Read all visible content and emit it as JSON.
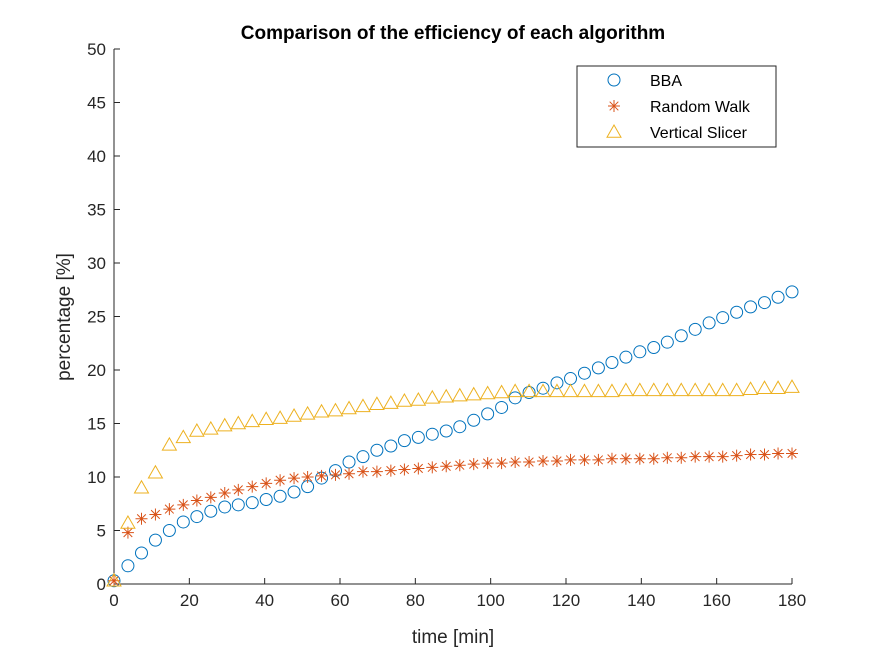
{
  "chart_data": {
    "type": "scatter",
    "title": "Comparison of the efficiency of each algorithm",
    "xlabel": "time [min]",
    "ylabel": "percentage [%]",
    "xlim": [
      0,
      180
    ],
    "ylim": [
      0,
      50
    ],
    "xticks": [
      0,
      20,
      40,
      60,
      80,
      100,
      120,
      140,
      160,
      180
    ],
    "yticks": [
      0,
      5,
      10,
      15,
      20,
      25,
      30,
      35,
      40,
      45,
      50
    ],
    "grid": false,
    "legend_position": "top-right",
    "x": [
      0,
      3.7,
      7.3,
      11,
      14.7,
      18.4,
      22,
      25.7,
      29.4,
      33,
      36.7,
      40.4,
      44.1,
      47.8,
      51.4,
      55.1,
      58.8,
      62.4,
      66.1,
      69.8,
      73.5,
      77.1,
      80.8,
      84.5,
      88.2,
      91.8,
      95.5,
      99.2,
      102.9,
      106.5,
      110.2,
      113.9,
      117.6,
      121.2,
      124.9,
      128.6,
      132.2,
      135.9,
      139.6,
      143.3,
      146.9,
      150.6,
      154.3,
      158,
      161.6,
      165.3,
      169,
      172.7,
      176.3,
      180
    ],
    "series": [
      {
        "name": "BBA",
        "marker": "circle",
        "color": "#0072BD",
        "values": [
          0.3,
          1.7,
          2.9,
          4.1,
          5.0,
          5.8,
          6.3,
          6.8,
          7.2,
          7.4,
          7.6,
          7.9,
          8.2,
          8.6,
          9.1,
          9.9,
          10.6,
          11.4,
          11.9,
          12.5,
          12.9,
          13.4,
          13.7,
          14.0,
          14.3,
          14.7,
          15.3,
          15.9,
          16.5,
          17.4,
          17.9,
          18.3,
          18.8,
          19.2,
          19.7,
          20.2,
          20.7,
          21.2,
          21.7,
          22.1,
          22.6,
          23.2,
          23.8,
          24.4,
          24.9,
          25.4,
          25.9,
          26.3,
          26.8,
          27.3
        ]
      },
      {
        "name": "Random Walk",
        "marker": "asterisk",
        "color": "#D95319",
        "values": [
          0.3,
          4.8,
          6.1,
          6.5,
          7.0,
          7.4,
          7.8,
          8.1,
          8.5,
          8.8,
          9.1,
          9.4,
          9.7,
          9.9,
          10.0,
          10.1,
          10.2,
          10.3,
          10.5,
          10.5,
          10.6,
          10.7,
          10.8,
          10.9,
          11.0,
          11.1,
          11.2,
          11.3,
          11.3,
          11.4,
          11.4,
          11.5,
          11.5,
          11.6,
          11.6,
          11.6,
          11.7,
          11.7,
          11.7,
          11.7,
          11.8,
          11.8,
          11.9,
          11.9,
          11.9,
          12.0,
          12.1,
          12.1,
          12.2,
          12.2
        ]
      },
      {
        "name": "Vertical Slicer",
        "marker": "triangle",
        "color": "#EDB120",
        "values": [
          0.3,
          5.7,
          9.0,
          10.4,
          13.0,
          13.7,
          14.3,
          14.5,
          14.8,
          15.0,
          15.2,
          15.4,
          15.5,
          15.7,
          15.9,
          16.1,
          16.2,
          16.4,
          16.6,
          16.8,
          16.9,
          17.1,
          17.2,
          17.4,
          17.5,
          17.6,
          17.7,
          17.8,
          17.9,
          18.0,
          18.0,
          18.0,
          18.0,
          18.0,
          18.0,
          18.0,
          18.0,
          18.1,
          18.1,
          18.1,
          18.1,
          18.1,
          18.1,
          18.1,
          18.1,
          18.1,
          18.2,
          18.3,
          18.3,
          18.4
        ]
      }
    ]
  }
}
